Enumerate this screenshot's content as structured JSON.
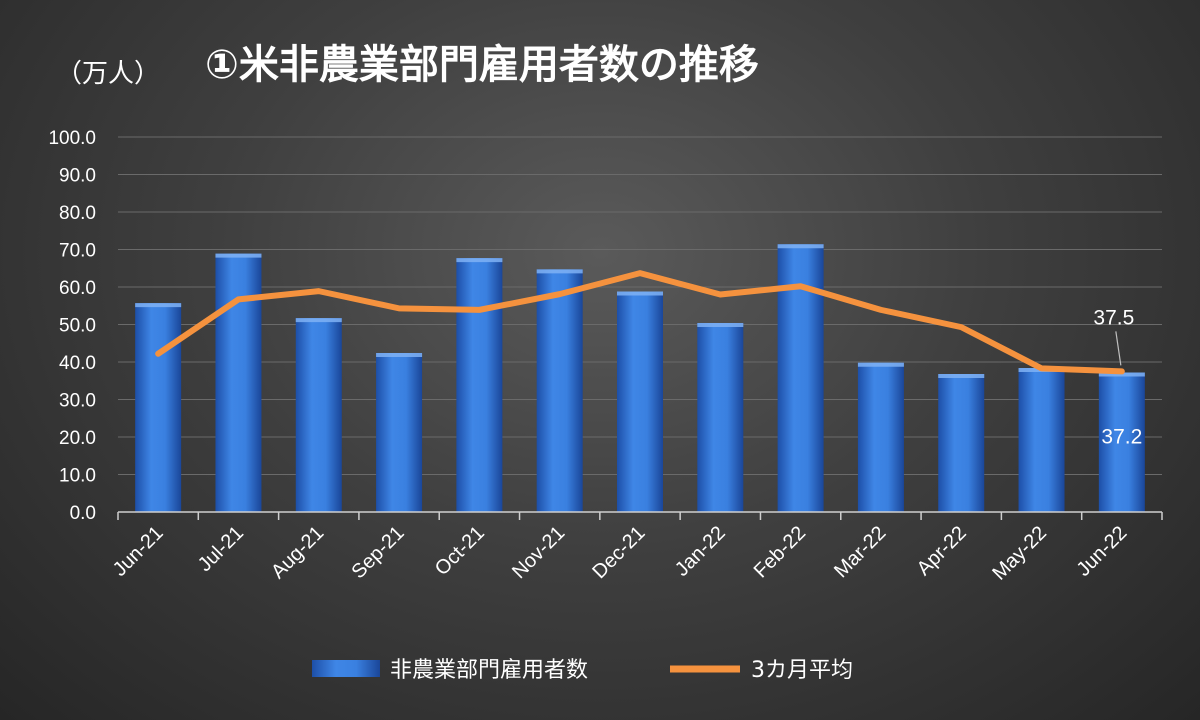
{
  "chart_data": {
    "type": "bar",
    "title": "①米非農業部門雇用者数の推移",
    "unit_label": "（万人）",
    "categories": [
      "Jun-21",
      "Jul-21",
      "Aug-21",
      "Sep-21",
      "Oct-21",
      "Nov-21",
      "Dec-21",
      "Jan-22",
      "Feb-22",
      "Mar-22",
      "Apr-22",
      "May-22",
      "Jun-22"
    ],
    "ylim": [
      0,
      100
    ],
    "yticks": [
      "0.0",
      "10.0",
      "20.0",
      "30.0",
      "40.0",
      "50.0",
      "60.0",
      "70.0",
      "80.0",
      "90.0",
      "100.0"
    ],
    "grid": true,
    "legend_position": "bottom",
    "series": [
      {
        "name": "非農業部門雇用者数",
        "type": "bar",
        "color": "#2f6fd0",
        "values": [
          55.7,
          68.9,
          51.7,
          42.4,
          67.7,
          64.7,
          58.8,
          50.4,
          71.4,
          39.8,
          36.8,
          38.4,
          37.2
        ]
      },
      {
        "name": "3カ月平均",
        "type": "line",
        "color": "#f5923e",
        "values": [
          42.2,
          56.7,
          58.9,
          54.3,
          53.9,
          58.1,
          63.7,
          58.0,
          60.2,
          53.9,
          49.3,
          38.3,
          37.5
        ]
      }
    ],
    "data_labels": [
      {
        "series": "非農業部門雇用者数",
        "category": "Jun-22",
        "text": "37.2"
      },
      {
        "series": "3カ月平均",
        "category": "Jun-22",
        "text": "37.5"
      }
    ]
  }
}
